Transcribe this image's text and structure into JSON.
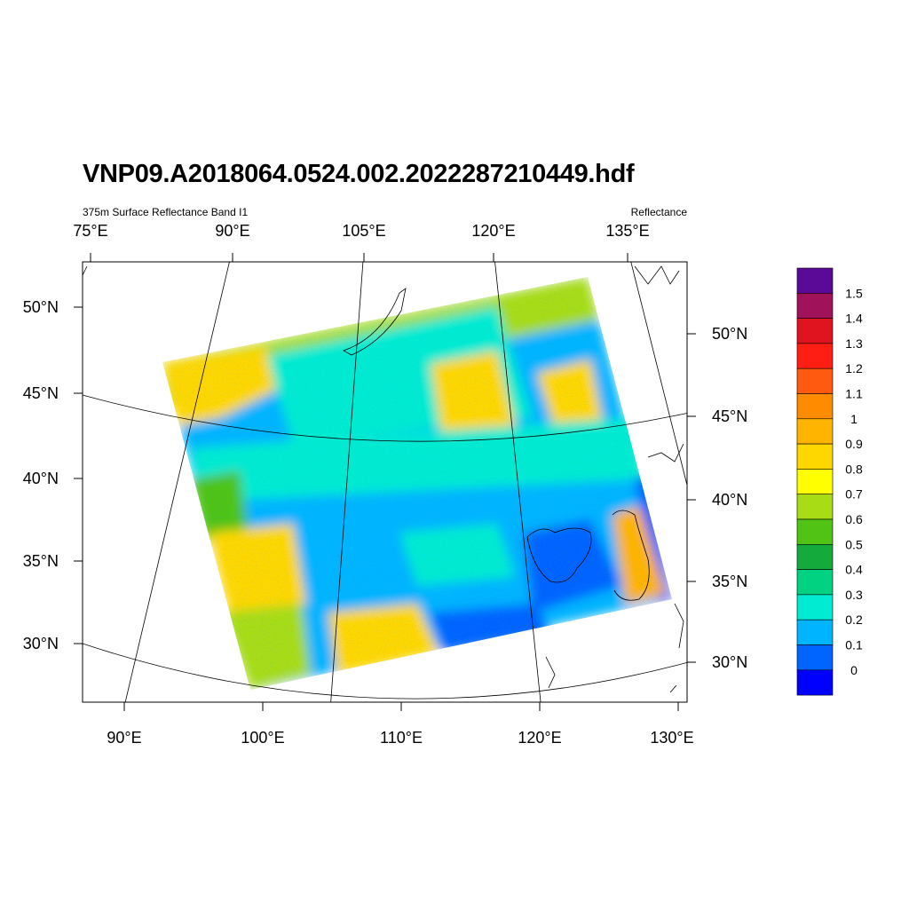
{
  "title": "VNP09.A2018064.0524.002.2022287210449.hdf",
  "subtitle_left": "375m Surface Reflectance Band I1",
  "subtitle_right": "Reflectance",
  "top_ticks": [
    "75°E",
    "90°E",
    "105°E",
    "120°E",
    "135°E"
  ],
  "bottom_ticks": [
    "90°E",
    "100°E",
    "110°E",
    "120°E",
    "130°E"
  ],
  "left_ticks": [
    "50°N",
    "45°N",
    "40°N",
    "35°N",
    "30°N"
  ],
  "right_ticks": [
    "50°N",
    "45°N",
    "40°N",
    "35°N",
    "30°N"
  ],
  "colorbar": {
    "labels": [
      "1.5",
      "1.4",
      "1.3",
      "1.2",
      "1.1",
      "1",
      "0.9",
      "0.8",
      "0.7",
      "0.6",
      "0.5",
      "0.4",
      "0.3",
      "0.2",
      "0.1",
      "0"
    ],
    "colors": [
      "#5a0a96",
      "#a0125a",
      "#e0141e",
      "#ff1e14",
      "#ff5a0f",
      "#ff8c00",
      "#ffb400",
      "#ffd700",
      "#ffff00",
      "#a8dc14",
      "#50c314",
      "#14aa3c",
      "#00d282",
      "#00ebd2",
      "#00b4ff",
      "#0064ff",
      "#0000ff"
    ]
  },
  "swath_colors": {
    "cyan": "#00ebd2",
    "lightblue": "#00b4ff",
    "blue": "#0064ff",
    "yellow": "#ffd700",
    "orange": "#ffb400",
    "green": "#a8dc14",
    "darkgreen": "#50c314",
    "teal": "#00d282"
  }
}
